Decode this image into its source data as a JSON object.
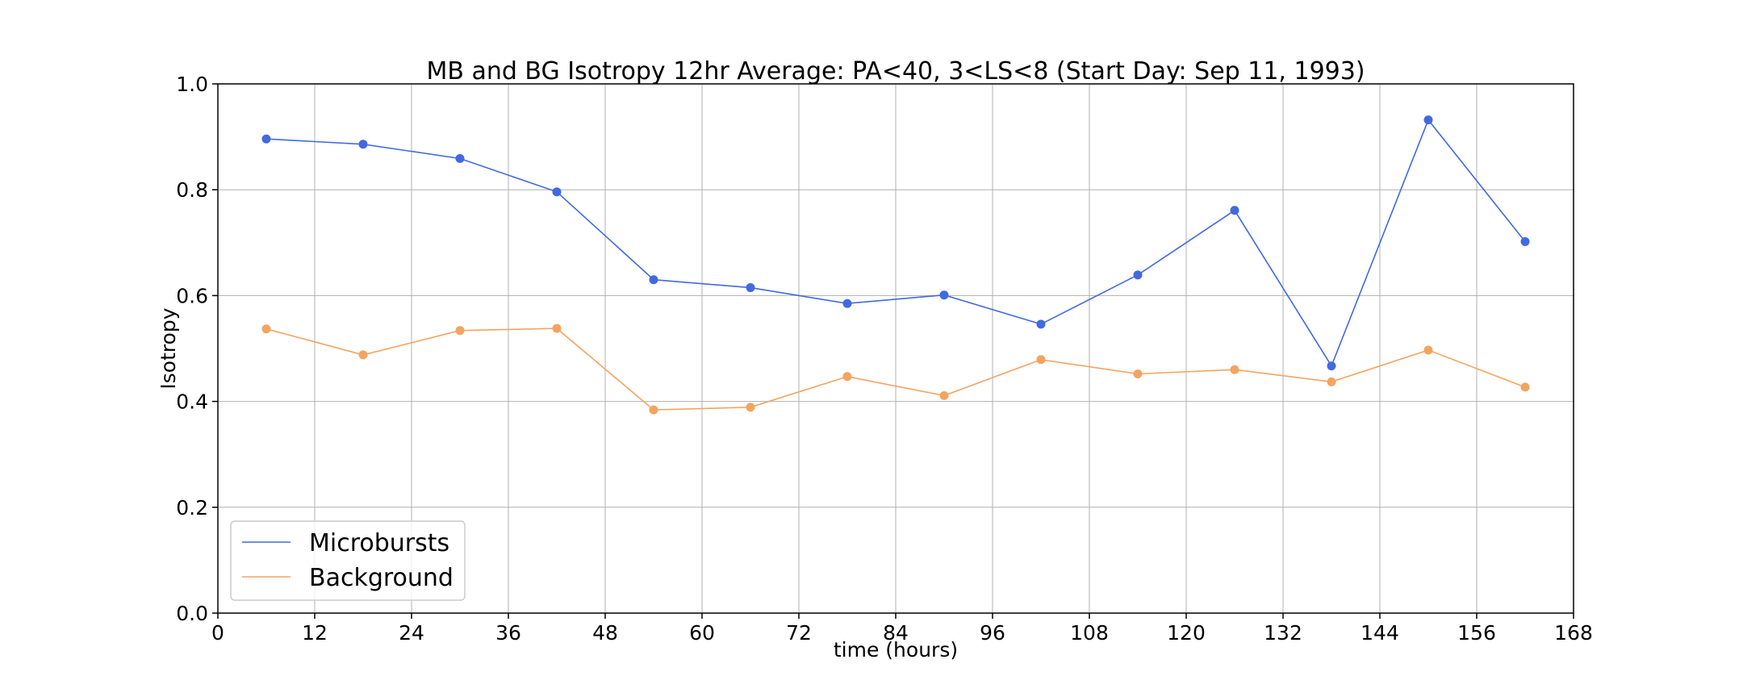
{
  "chart_data": {
    "type": "line",
    "title": "MB and BG Isotropy 12hr Average: PA<40, 3<LS<8 (Start Day: Sep 11, 1993)",
    "xlabel": "time (hours)",
    "ylabel": "Isotropy",
    "xlim": [
      0,
      168
    ],
    "ylim": [
      0.0,
      1.0
    ],
    "xticks": [
      0,
      12,
      24,
      36,
      48,
      60,
      72,
      84,
      96,
      108,
      120,
      132,
      144,
      156,
      168
    ],
    "yticks": [
      0.0,
      0.2,
      0.4,
      0.6,
      0.8,
      1.0
    ],
    "ytick_labels": [
      "0.0",
      "0.2",
      "0.4",
      "0.6",
      "0.8",
      "1.0"
    ],
    "grid": true,
    "legend_position": "bottom-left",
    "x": [
      6,
      18,
      30,
      42,
      54,
      66,
      78,
      90,
      102,
      114,
      126,
      138,
      150,
      162
    ],
    "series": [
      {
        "name": "Microbursts",
        "color": "#4169e1",
        "values": [
          0.896,
          0.886,
          0.859,
          0.796,
          0.63,
          0.615,
          0.585,
          0.601,
          0.546,
          0.639,
          0.761,
          0.467,
          0.932,
          0.702
        ]
      },
      {
        "name": "Background",
        "color": "#f4a460",
        "values": [
          0.537,
          0.488,
          0.534,
          0.538,
          0.384,
          0.389,
          0.447,
          0.411,
          0.479,
          0.452,
          0.46,
          0.437,
          0.497,
          0.427
        ]
      }
    ]
  }
}
